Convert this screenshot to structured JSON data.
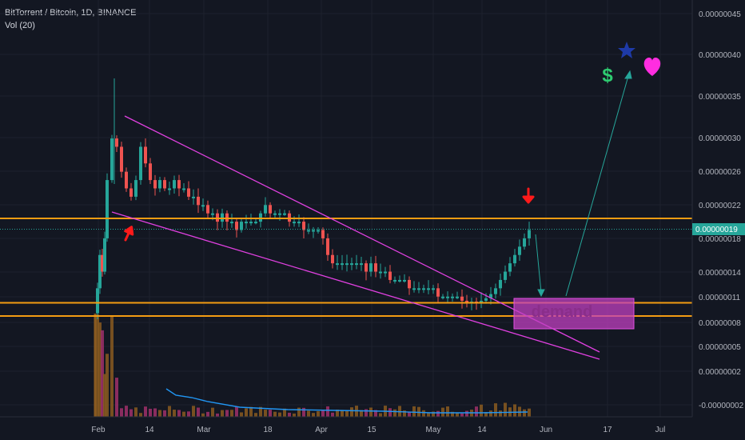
{
  "header": {
    "symbol_line": "BitTorrent / Bitcoin, 1D, BINANCE",
    "volume_line": "Vol (20)"
  },
  "chart_data": {
    "type": "candlestick",
    "symbol": "BitTorrent / Bitcoin",
    "interval": "1D",
    "exchange": "BINANCE",
    "x_tick_labels": [
      "Feb",
      "14",
      "Mar",
      "18",
      "Apr",
      "15",
      "May",
      "14",
      "Jun",
      "17",
      "Jul"
    ],
    "y_tick_labels": [
      "0.00000045",
      "0.00000040",
      "0.00000035",
      "0.00000030",
      "0.00000026",
      "0.00000022",
      "0.00000018",
      "0.00000014",
      "0.00000011",
      "0.00000008",
      "0.00000005",
      "0.00000002",
      "-0.00000002"
    ],
    "y_tick_values": [
      4.5e-07,
      4e-07,
      3.5e-07,
      3e-07,
      2.6e-07,
      2.2e-07,
      1.8e-07,
      1.4e-07,
      1.1e-07,
      8e-08,
      5e-08,
      2e-08,
      -2e-08
    ],
    "last_price_label": "0.00000019",
    "last_price": 1.9e-07,
    "horizontal_levels": [
      2.05e-07,
      1.08e-07,
      9.1e-08
    ],
    "annotations": {
      "demand_zone_label": "demand",
      "dollar_symbol": "$"
    },
    "colors": {
      "up": "#26a69a",
      "down": "#ef5350",
      "level": "#f39c12",
      "wedge": "#e040e0",
      "zone": "#c040c0",
      "arrow": "#ff1a1a",
      "projection": "#26a69a",
      "volume_ma": "#2196f3",
      "heart": "#ff2de0",
      "star": "#1e3aa8"
    }
  }
}
